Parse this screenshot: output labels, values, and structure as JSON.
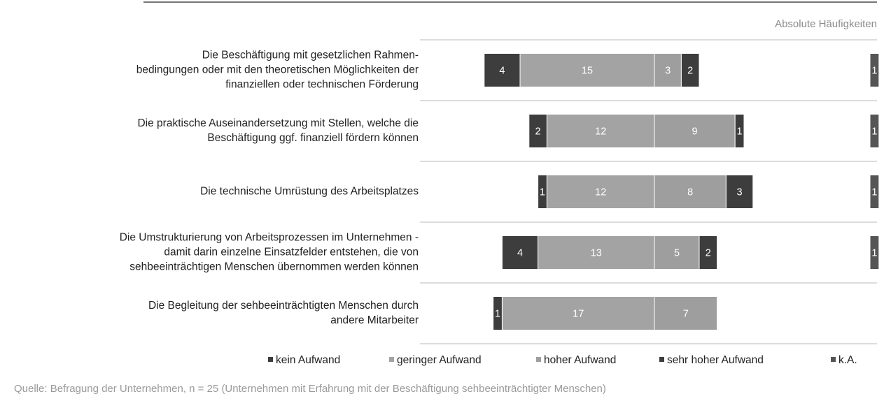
{
  "chart_data": {
    "type": "diverging_bar",
    "subtitle": "Absolute Häufigkeiten",
    "categories": [
      "Die Beschäftigung mit gesetzlichen Rahmen-\nbedingungen oder mit den theoretischen Möglichkeiten der\nfinanziellen oder technischen Förderung",
      "Die praktische Auseinandersetzung mit Stellen, welche die\nBeschäftigung ggf. finanziell fördern können",
      "Die technische Umrüstung des Arbeitsplatzes",
      "Die Umstrukturierung von Arbeitsprozessen im Unternehmen -\ndamit darin einzelne Einsatzfelder entstehen, die von\nsehbeeinträchtigen Menschen übernommen werden können",
      "Die Begleitung der sehbeeinträchtigten Menschen durch\nandere Mitarbeiter"
    ],
    "series": [
      {
        "name": "kein Aufwand",
        "color": "#3d3d3d",
        "values": [
          4,
          2,
          1,
          4,
          1
        ]
      },
      {
        "name": "geringer Aufwand",
        "color": "#a3a3a3",
        "values": [
          15,
          12,
          12,
          13,
          17
        ]
      },
      {
        "name": "hoher Aufwand",
        "color": "#9e9e9e",
        "values": [
          3,
          9,
          8,
          5,
          7
        ]
      },
      {
        "name": "sehr hoher Aufwand",
        "color": "#3d3d3d",
        "values": [
          2,
          1,
          3,
          2,
          null
        ]
      },
      {
        "name": "k.A.",
        "color": "#555555",
        "values": [
          1,
          1,
          1,
          1,
          null
        ]
      }
    ],
    "source": "Quelle: Befragung der Unternehmen, n = 25 (Unternehmen mit Erfahrung mit der Beschäftigung sehbeeinträchtigter Menschen)"
  }
}
